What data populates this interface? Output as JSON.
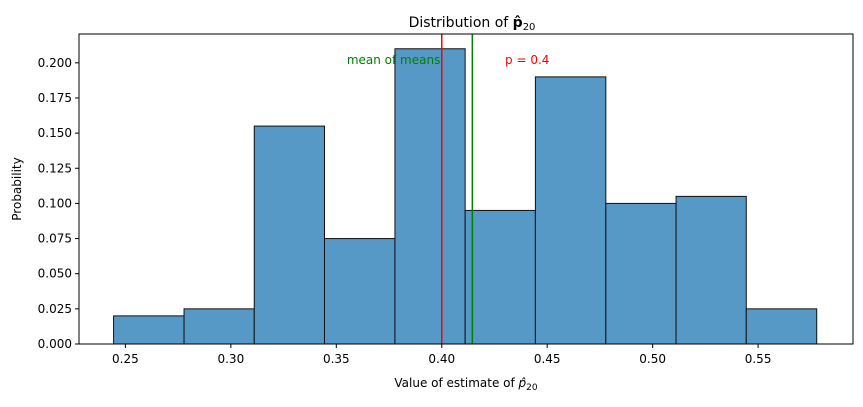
{
  "chart_data": {
    "type": "bar",
    "title_main": "Distribution of ",
    "title_sym": "p̂",
    "title_sub": "20",
    "xlabel_main": "Value of estimate of ",
    "xlabel_sym": "p̂",
    "xlabel_sub": "20",
    "ylabel": "Probability",
    "xlim": [
      0.228,
      0.595
    ],
    "ylim": [
      0,
      0.2205
    ],
    "xticks": [
      0.25,
      0.3,
      0.35,
      0.4,
      0.45,
      0.5,
      0.55
    ],
    "xtick_labels": [
      "0.25",
      "0.30",
      "0.35",
      "0.40",
      "0.45",
      "0.50",
      "0.55"
    ],
    "yticks": [
      0,
      0.025,
      0.05,
      0.075,
      0.1,
      0.125,
      0.15,
      0.175,
      0.2
    ],
    "ytick_labels": [
      "0.000",
      "0.025",
      "0.050",
      "0.075",
      "0.100",
      "0.125",
      "0.150",
      "0.175",
      "0.200"
    ],
    "bins": [
      {
        "x0": 0.2444,
        "x1": 0.2778,
        "value": 0.02
      },
      {
        "x0": 0.2778,
        "x1": 0.3111,
        "value": 0.025
      },
      {
        "x0": 0.3111,
        "x1": 0.3444,
        "value": 0.155
      },
      {
        "x0": 0.3444,
        "x1": 0.3778,
        "value": 0.075
      },
      {
        "x0": 0.3778,
        "x1": 0.4111,
        "value": 0.21
      },
      {
        "x0": 0.4111,
        "x1": 0.4444,
        "value": 0.095
      },
      {
        "x0": 0.4444,
        "x1": 0.4778,
        "value": 0.19
      },
      {
        "x0": 0.4778,
        "x1": 0.5111,
        "value": 0.1
      },
      {
        "x0": 0.5111,
        "x1": 0.5444,
        "value": 0.105
      },
      {
        "x0": 0.5444,
        "x1": 0.5778,
        "value": 0.025
      }
    ],
    "vlines": [
      {
        "x": 0.4,
        "color": "#ff0000"
      },
      {
        "x": 0.4145,
        "color": "#008000"
      }
    ],
    "annotations": [
      {
        "text": "mean of means",
        "x": 0.355,
        "y": 0.2,
        "color": "#008000",
        "anchor": "start"
      },
      {
        "text": "p = 0.4",
        "x": 0.43,
        "y": 0.2,
        "color": "#ff0000",
        "anchor": "start"
      }
    ],
    "colors": {
      "bar_fill": "#5799c6",
      "bar_edge": "#111111",
      "axis": "#000000"
    },
    "grid": false,
    "legend": "none"
  }
}
